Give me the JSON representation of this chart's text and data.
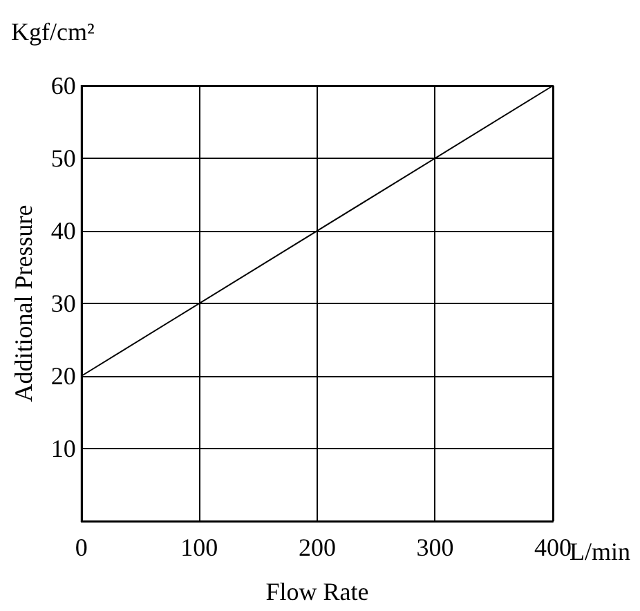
{
  "chart_data": {
    "type": "line",
    "xlabel": "Flow Rate",
    "ylabel": "Additional Pressure",
    "annotations": [
      "Kgf/cm²",
      "L/min"
    ],
    "x": [
      0,
      400
    ],
    "series": [
      {
        "color": "#000000",
        "values": [
          20,
          60
        ]
      }
    ],
    "xlim": [
      0,
      400
    ],
    "xticks": [
      0,
      100,
      200,
      300,
      400
    ],
    "ylim": [
      0,
      60
    ],
    "yticks": [
      {
        "value": 0,
        "label": null
      },
      10,
      20,
      30,
      40,
      50,
      60
    ],
    "grid": true,
    "marker": "none",
    "line_style": "solid"
  }
}
